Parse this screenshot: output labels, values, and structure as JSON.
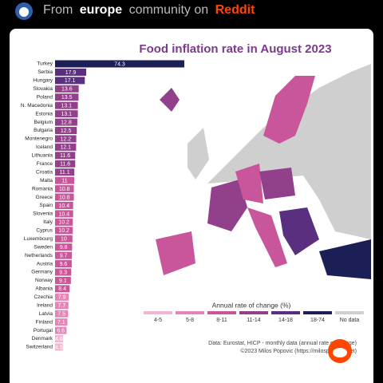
{
  "header": {
    "prefix": "From",
    "community": "europe",
    "middle": "community on",
    "site": "Reddit"
  },
  "chart_data": {
    "type": "bar",
    "title": "Food inflation rate in August 2023",
    "categories": [
      "Turkey",
      "Serbia",
      "Hungary",
      "Slovakia",
      "Poland",
      "N. Macedonia",
      "Estonia",
      "Belgium",
      "Bulgaria",
      "Montenegro",
      "Iceland",
      "Lithuania",
      "France",
      "Croatia",
      "Malta",
      "Romania",
      "Greece",
      "Spain",
      "Slovenia",
      "Italy",
      "Cyprus",
      "Luxembourg",
      "Sweden",
      "Netherlands",
      "Austria",
      "Germany",
      "Norway",
      "Albania",
      "Czechia",
      "Ireland",
      "Latvia",
      "Finland",
      "Portugal",
      "Denmark",
      "Switzerland"
    ],
    "values": [
      74.3,
      17.9,
      17.1,
      13.6,
      13.5,
      13.1,
      13.1,
      12.8,
      12.5,
      12.2,
      12.1,
      11.6,
      11.6,
      11.1,
      11,
      10.8,
      10.8,
      10.4,
      10.4,
      10.2,
      10.2,
      10,
      9.8,
      9.7,
      9.6,
      9.3,
      9.1,
      8.4,
      7.9,
      7.7,
      7.5,
      7.1,
      6.6,
      4.6,
      4.5
    ],
    "colors": [
      "#1b1f55",
      "#5a2f80",
      "#5a2f80",
      "#93408c",
      "#93408c",
      "#93408c",
      "#93408c",
      "#93408c",
      "#93408c",
      "#93408c",
      "#93408c",
      "#93408c",
      "#93408c",
      "#93408c",
      "#c9559a",
      "#c9559a",
      "#c9559a",
      "#c9559a",
      "#c9559a",
      "#c9559a",
      "#c9559a",
      "#c9559a",
      "#c9559a",
      "#c9559a",
      "#c9559a",
      "#c9559a",
      "#c9559a",
      "#c9559a",
      "#e484b7",
      "#e484b7",
      "#e484b7",
      "#e484b7",
      "#e484b7",
      "#f2b6d1",
      "#f2b6d1"
    ],
    "legend_title": "Annual rate of change (%)",
    "legend": [
      {
        "label": "4-5",
        "color": "#f2b6d1"
      },
      {
        "label": "5-8",
        "color": "#e484b7"
      },
      {
        "label": "8-11",
        "color": "#c9559a"
      },
      {
        "label": "11-14",
        "color": "#93408c"
      },
      {
        "label": "14-18",
        "color": "#5a2f80"
      },
      {
        "label": "18-74",
        "color": "#1b1f55"
      },
      {
        "label": "No data",
        "color": "#cfcfcf"
      }
    ],
    "source": "Data: Eurostat, HICP - monthly data (annual rate of change)",
    "credit": "©2023 Milos Popovic (https://milospopovic.net)"
  }
}
